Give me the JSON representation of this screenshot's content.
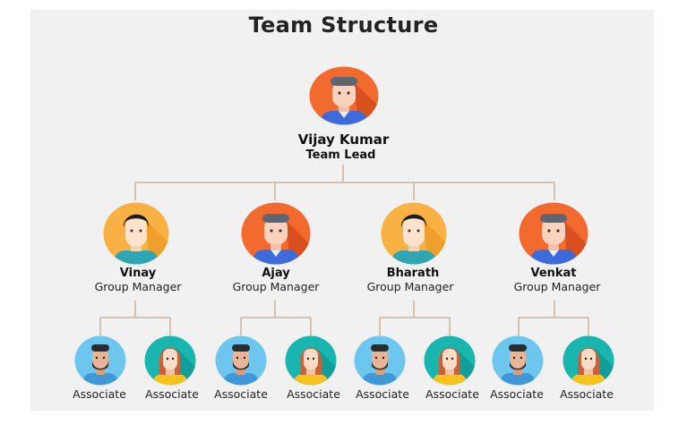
{
  "title": "Team Structure",
  "lead": {
    "name": "Vijay Kumar",
    "role": "Team Lead",
    "avatar": "male-avatar-orange-icon"
  },
  "managers": [
    {
      "name": "Vinay",
      "role": "Group Manager",
      "avatar": "male-avatar-yellow-icon",
      "associates": [
        {
          "label": "Associate",
          "avatar": "bearded-male-avatar-icon"
        },
        {
          "label": "Associate",
          "avatar": "female-avatar-teal-icon"
        }
      ]
    },
    {
      "name": "Ajay",
      "role": "Group Manager",
      "avatar": "male-avatar-orange-icon",
      "associates": [
        {
          "label": "Associate",
          "avatar": "bearded-male-avatar-icon"
        },
        {
          "label": "Associate",
          "avatar": "female-avatar-teal-icon"
        }
      ]
    },
    {
      "name": "Bharath",
      "role": "Group Manager",
      "avatar": "male-avatar-yellow-icon",
      "associates": [
        {
          "label": "Associate",
          "avatar": "bearded-male-avatar-icon"
        },
        {
          "label": "Associate",
          "avatar": "female-avatar-teal-icon"
        }
      ]
    },
    {
      "name": "Venkat",
      "role": "Group Manager",
      "avatar": "male-avatar-orange-icon",
      "associates": [
        {
          "label": "Associate",
          "avatar": "bearded-male-avatar-icon"
        },
        {
          "label": "Associate",
          "avatar": "female-avatar-teal-icon"
        }
      ]
    }
  ],
  "colors": {
    "connector": "#d5c1ad",
    "orange_bg": "#f26a2e",
    "yellow_bg": "#f8b142",
    "light_blue_bg": "#6cc6ee",
    "teal_bg": "#19b6b0"
  }
}
